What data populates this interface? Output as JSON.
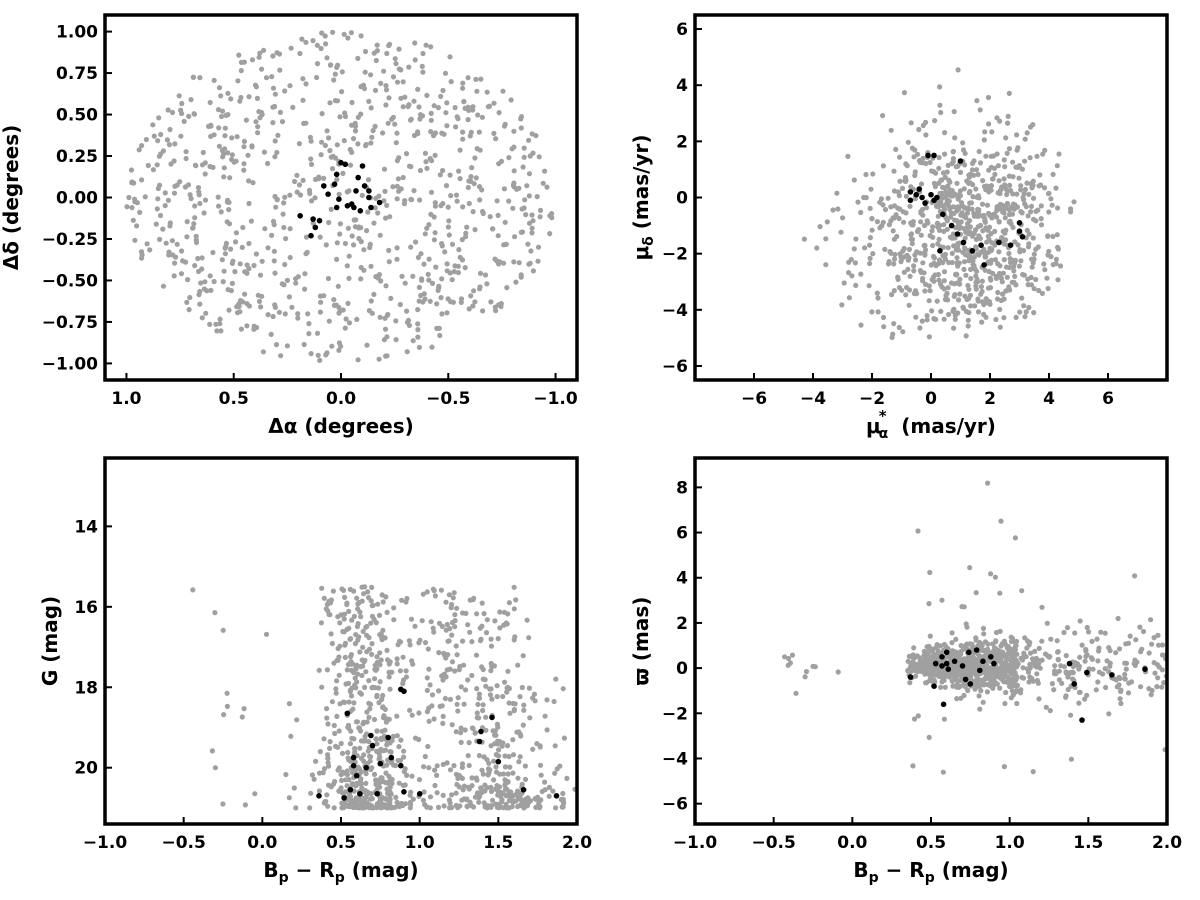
{
  "colors": {
    "field": "#a0a0a0",
    "members": "#000000"
  },
  "chart_data": [
    {
      "type": "scatter",
      "id": "sky",
      "xlabel": "Δα (degrees)",
      "ylabel": "Δδ (degrees)",
      "xlim": [
        1.1,
        -1.1
      ],
      "ylim": [
        -1.1,
        1.1
      ],
      "xticks": [
        1.0,
        0.5,
        0.0,
        -0.5,
        -1.0
      ],
      "xtick_labels": [
        "1.0",
        "0.5",
        "0.0",
        "−0.5",
        "−1.0"
      ],
      "yticks": [
        -1.0,
        -0.75,
        -0.5,
        -0.25,
        0.0,
        0.25,
        0.5,
        0.75,
        1.0
      ],
      "ytick_labels": [
        "−1.00",
        "−0.75",
        "−0.50",
        "−0.25",
        "0.00",
        "0.25",
        "0.50",
        "0.75",
        "1.00"
      ],
      "grid": false,
      "field": {
        "count": 900,
        "distribution": "uniform disk",
        "center": [
          0,
          0
        ],
        "radius": 1.0,
        "seed": 11
      },
      "series": [
        {
          "role": "members",
          "points": [
            [
              -0.1,
              0.19
            ],
            [
              -0.08,
              0.12
            ],
            [
              -0.11,
              0.07
            ],
            [
              -0.13,
              0.04
            ],
            [
              -0.07,
              0.04
            ],
            [
              -0.14,
              -0.06
            ],
            [
              -0.09,
              -0.08
            ],
            [
              -0.06,
              -0.06
            ],
            [
              -0.05,
              -0.04
            ],
            [
              -0.03,
              -0.05
            ],
            [
              0.0,
              0.21
            ],
            [
              -0.02,
              0.2
            ],
            [
              0.02,
              0.14
            ],
            [
              0.03,
              0.08
            ],
            [
              0.06,
              0.02
            ],
            [
              0.08,
              0.07
            ],
            [
              0.01,
              -0.01
            ],
            [
              0.02,
              -0.06
            ],
            [
              0.1,
              -0.14
            ],
            [
              0.13,
              -0.13
            ],
            [
              0.12,
              -0.18
            ],
            [
              0.14,
              -0.23
            ],
            [
              0.19,
              -0.11
            ],
            [
              -0.13,
              0.0
            ],
            [
              -0.18,
              -0.03
            ]
          ]
        }
      ]
    },
    {
      "type": "scatter",
      "id": "proper-motion",
      "xlabel_main": "μ",
      "xlabel_sub": "α",
      "xlabel_sup": "*",
      "xlabel_unit": "(mas/yr)",
      "ylabel_main": "μ",
      "ylabel_sub": "δ",
      "ylabel_unit": "(mas/yr)",
      "xlim": [
        -8,
        8
      ],
      "ylim": [
        -6.5,
        6.5
      ],
      "xticks": [
        -6,
        -4,
        -2,
        0,
        2,
        4,
        6
      ],
      "xtick_labels": [
        "−6",
        "−4",
        "−2",
        "0",
        "2",
        "4",
        "6"
      ],
      "yticks": [
        -6,
        -4,
        -2,
        0,
        2,
        4,
        6
      ],
      "ytick_labels": [
        "−6",
        "−4",
        "−2",
        "0",
        "2",
        "4",
        "6"
      ],
      "grid": false,
      "field": {
        "count": 850,
        "distribution": "gaussian clump",
        "center": [
          1.0,
          -1.3
        ],
        "spread": [
          1.8,
          1.9
        ],
        "xrange": [
          -5,
          5
        ],
        "yrange": [
          -5,
          5
        ],
        "seed": 23
      },
      "series": [
        {
          "role": "members",
          "points": [
            [
              -0.1,
              1.5
            ],
            [
              0.1,
              1.5
            ],
            [
              1.0,
              1.3
            ],
            [
              -0.7,
              0.2
            ],
            [
              -0.5,
              0.1
            ],
            [
              -0.3,
              0.0
            ],
            [
              -0.7,
              -0.1
            ],
            [
              -0.4,
              0.3
            ],
            [
              -0.2,
              -0.2
            ],
            [
              0.0,
              0.1
            ],
            [
              0.2,
              0.0
            ],
            [
              0.1,
              -0.1
            ],
            [
              0.4,
              -0.6
            ],
            [
              0.7,
              -1.0
            ],
            [
              0.9,
              -1.3
            ],
            [
              1.1,
              -1.6
            ],
            [
              1.4,
              -1.9
            ],
            [
              1.7,
              -1.7
            ],
            [
              2.3,
              -1.6
            ],
            [
              2.7,
              -1.7
            ],
            [
              3.0,
              -1.2
            ],
            [
              3.0,
              -0.9
            ],
            [
              3.1,
              -1.4
            ],
            [
              0.3,
              -1.9
            ],
            [
              1.8,
              -2.4
            ]
          ]
        }
      ]
    },
    {
      "type": "scatter",
      "id": "cmd",
      "xlabel_main": "B",
      "xlabel_sub": "p",
      "xlabel_mid": " − R",
      "xlabel_sub2": "p",
      "xlabel_unit": " (mag)",
      "ylabel": "G (mag)",
      "xlim": [
        -1.0,
        2.0
      ],
      "ylim": [
        21.4,
        12.3
      ],
      "xticks": [
        -1.0,
        -0.5,
        0.0,
        0.5,
        1.0,
        1.5,
        2.0
      ],
      "xtick_labels": [
        "−1.0",
        "−0.5",
        "0.0",
        "0.5",
        "1.0",
        "1.5",
        "2.0"
      ],
      "yticks": [
        14,
        16,
        18,
        20
      ],
      "ytick_labels": [
        "14",
        "16",
        "18",
        "20"
      ],
      "grid": false,
      "field": {
        "count": 1000,
        "distribution": "two sequences",
        "blue_center": 0.7,
        "red_center": 1.55,
        "mag_range": [
          15.5,
          21.0
        ],
        "seed": 37
      },
      "series": [
        {
          "role": "members",
          "points": [
            [
              0.36,
              20.7
            ],
            [
              0.52,
              20.75
            ],
            [
              0.62,
              20.65
            ],
            [
              0.73,
              20.65
            ],
            [
              0.9,
              20.6
            ],
            [
              1.0,
              20.65
            ],
            [
              0.56,
              20.55
            ],
            [
              0.6,
              20.2
            ],
            [
              0.66,
              20.0
            ],
            [
              0.58,
              19.95
            ],
            [
              0.58,
              19.75
            ],
            [
              0.75,
              19.9
            ],
            [
              0.82,
              19.75
            ],
            [
              0.88,
              19.95
            ],
            [
              0.7,
              19.45
            ],
            [
              0.69,
              19.2
            ],
            [
              0.8,
              19.25
            ],
            [
              0.54,
              18.65
            ],
            [
              0.88,
              18.05
            ],
            [
              0.9,
              18.1
            ],
            [
              1.38,
              19.35
            ],
            [
              1.39,
              19.1
            ],
            [
              1.46,
              18.75
            ],
            [
              1.5,
              19.85
            ],
            [
              1.66,
              20.55
            ],
            [
              1.87,
              20.7
            ]
          ]
        }
      ]
    },
    {
      "type": "scatter",
      "id": "parallax",
      "xlabel_main": "B",
      "xlabel_sub": "p",
      "xlabel_mid": " − R",
      "xlabel_sub2": "p",
      "xlabel_unit": " (mag)",
      "ylabel": "ϖ (mas)",
      "xlim": [
        -1.0,
        2.0
      ],
      "ylim": [
        -6.9,
        9.3
      ],
      "xticks": [
        -1.0,
        -0.5,
        0.0,
        0.5,
        1.0,
        1.5,
        2.0
      ],
      "xtick_labels": [
        "−1.0",
        "−0.5",
        "0.0",
        "0.5",
        "1.0",
        "1.5",
        "2.0"
      ],
      "yticks": [
        -6,
        -4,
        -2,
        0,
        2,
        4,
        6,
        8
      ],
      "ytick_labels": [
        "−6",
        "−4",
        "−2",
        "0",
        "2",
        "4",
        "6",
        "8"
      ],
      "grid": false,
      "field": {
        "count": 1000,
        "distribution": "band",
        "y_center": 0.1,
        "seed": 53
      },
      "series": [
        {
          "role": "members",
          "points": [
            [
              0.37,
              -0.4
            ],
            [
              0.52,
              -0.8
            ],
            [
              0.53,
              0.2
            ],
            [
              0.57,
              0.1
            ],
            [
              0.57,
              0.5
            ],
            [
              0.6,
              0.7
            ],
            [
              0.58,
              -1.6
            ],
            [
              0.61,
              -0.05
            ],
            [
              0.65,
              0.3
            ],
            [
              0.7,
              0.1
            ],
            [
              0.72,
              -0.5
            ],
            [
              0.74,
              0.7
            ],
            [
              0.75,
              -0.7
            ],
            [
              0.79,
              0.8
            ],
            [
              0.81,
              -0.1
            ],
            [
              0.83,
              0.3
            ],
            [
              0.88,
              0.5
            ],
            [
              0.9,
              0.2
            ],
            [
              1.38,
              0.2
            ],
            [
              1.41,
              -0.7
            ],
            [
              1.46,
              -2.3
            ],
            [
              1.49,
              -0.2
            ],
            [
              1.65,
              -0.3
            ],
            [
              1.86,
              -0.05
            ],
            [
              0.6,
              0.2
            ]
          ]
        }
      ]
    }
  ]
}
